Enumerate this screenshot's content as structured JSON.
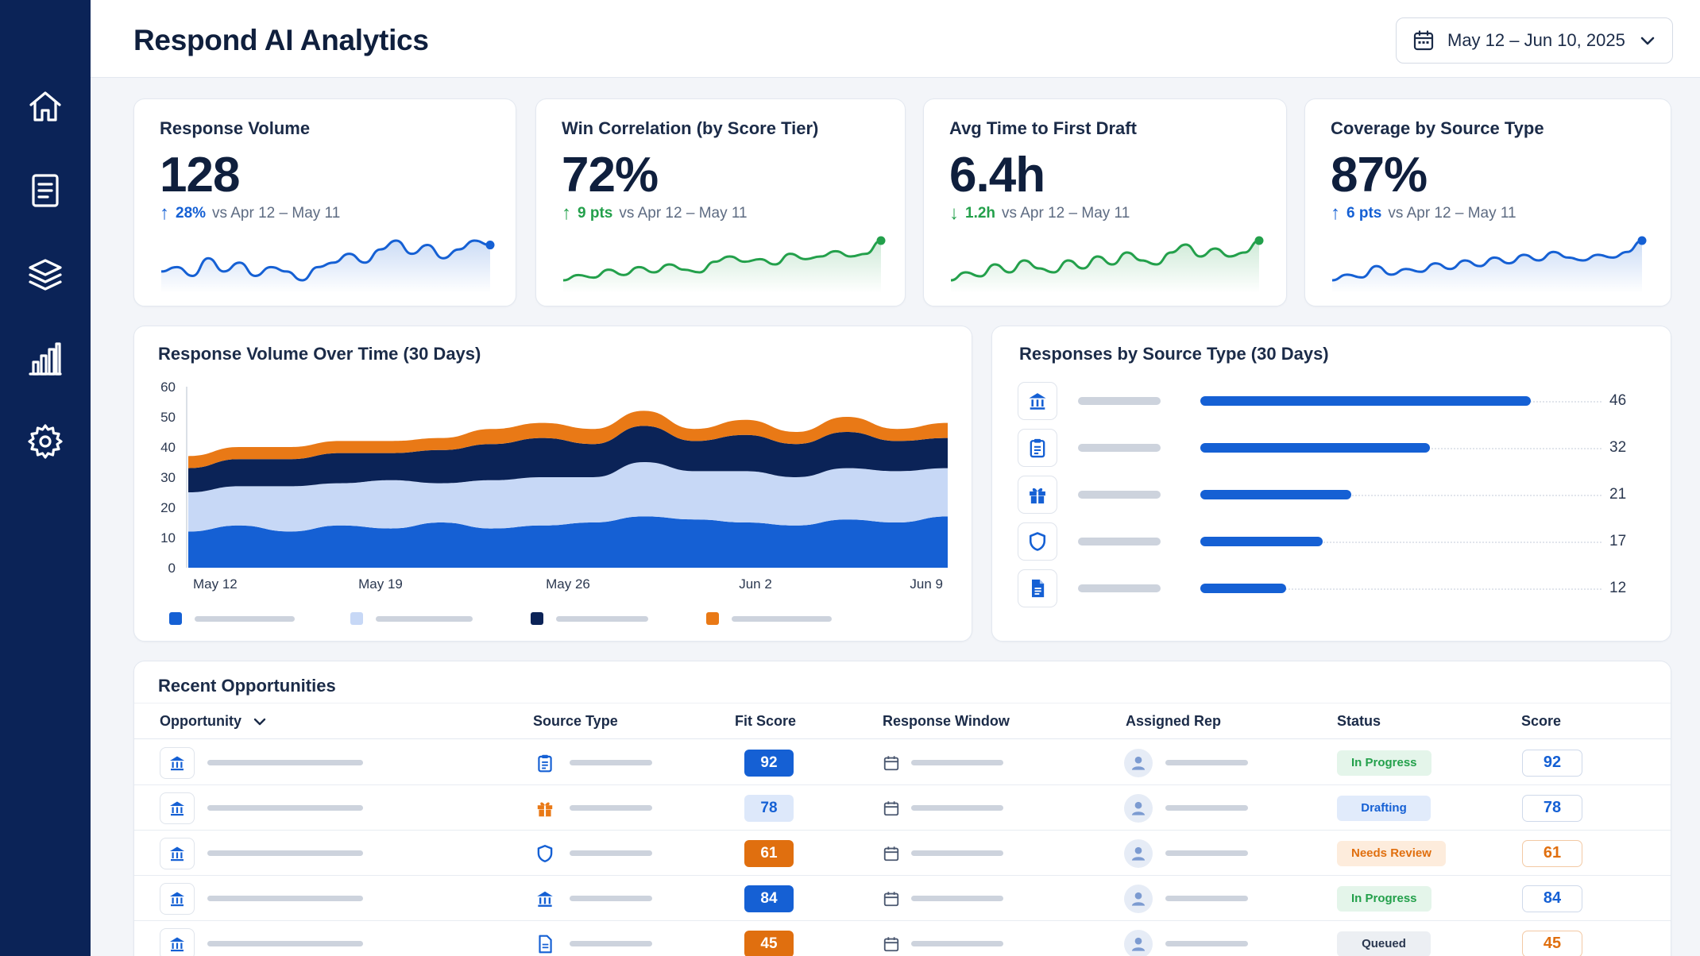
{
  "app": {
    "title": "Respond AI Analytics"
  },
  "sidebar": {
    "items": [
      {
        "name": "home",
        "icon": "home-icon"
      },
      {
        "name": "documents",
        "icon": "document-icon"
      },
      {
        "name": "layers",
        "icon": "layers-icon"
      },
      {
        "name": "analytics",
        "icon": "bar-chart-icon"
      },
      {
        "name": "settings",
        "icon": "gear-icon"
      }
    ]
  },
  "header": {
    "date_range": "May 12 – Jun 10, 2025"
  },
  "kpis": [
    {
      "title": "Response Volume",
      "value": "128",
      "delta": "28%",
      "direction": "up",
      "compare": "vs Apr 12 – May 11",
      "color": "#1560d4",
      "spark": [
        5,
        6,
        4,
        8,
        5,
        7,
        4,
        6,
        5,
        3,
        6,
        7,
        9,
        7,
        10,
        12,
        9,
        11,
        8,
        10,
        12,
        11
      ]
    },
    {
      "title": "Win Correlation (by Score Tier)",
      "value": "72%",
      "delta": "9 pts",
      "direction": "up",
      "compare": "vs Apr 12 – May 11",
      "color": "#23a04b",
      "spark": [
        3,
        5,
        4,
        7,
        5,
        8,
        6,
        9,
        7,
        6,
        10,
        12,
        10,
        11,
        9,
        13,
        11,
        12,
        14,
        12,
        13,
        18
      ]
    },
    {
      "title": "Avg Time to First Draft",
      "value": "6.4h",
      "delta": "1.2h",
      "direction": "down",
      "compare": "vs Apr 12 – May 11",
      "color": "#23a04b",
      "spark": [
        4,
        6,
        5,
        8,
        6,
        9,
        7,
        6,
        9,
        7,
        10,
        8,
        11,
        9,
        8,
        11,
        13,
        10,
        12,
        10,
        11,
        14
      ]
    },
    {
      "title": "Coverage by Source Type",
      "value": "87%",
      "delta": "6 pts",
      "direction": "up",
      "compare": "vs Apr 12 – May 11",
      "color": "#1560d4",
      "spark": [
        4,
        6,
        5,
        9,
        6,
        8,
        7,
        10,
        8,
        11,
        9,
        12,
        10,
        13,
        11,
        14,
        12,
        11,
        13,
        12,
        14,
        18
      ]
    }
  ],
  "area_panel": {
    "title": "Response Volume Over Time (30 Days)"
  },
  "source_panel": {
    "title": "Responses by Source Type (30 Days)"
  },
  "chart_data": [
    {
      "type": "area",
      "title": "Response Volume Over Time (30 Days)",
      "x": [
        "May 12",
        "May 14",
        "May 16",
        "May 18",
        "May 20",
        "May 22",
        "May 24",
        "May 26",
        "May 28",
        "May 30",
        "Jun 1",
        "Jun 3",
        "Jun 5",
        "Jun 7",
        "Jun 9",
        "Jun 10"
      ],
      "x_ticks": [
        "May 12",
        "May 19",
        "May 26",
        "Jun 2",
        "Jun 9"
      ],
      "y_ticks": [
        0,
        10,
        20,
        30,
        40,
        50,
        60
      ],
      "ylim": [
        0,
        60
      ],
      "stacked": true,
      "series": [
        {
          "color": "#1560d4",
          "values": [
            12,
            14,
            12,
            14,
            13,
            15,
            13,
            14,
            15,
            17,
            16,
            15,
            14,
            16,
            15,
            17
          ]
        },
        {
          "color": "#c7d8f6",
          "values": [
            13,
            13,
            15,
            14,
            16,
            13,
            16,
            16,
            15,
            18,
            16,
            17,
            16,
            17,
            17,
            16
          ]
        },
        {
          "color": "#0b2357",
          "values": [
            8,
            9,
            9,
            10,
            9,
            11,
            12,
            13,
            11,
            12,
            10,
            12,
            11,
            12,
            10,
            10
          ]
        },
        {
          "color": "#e97916",
          "values": [
            4,
            4,
            4,
            4,
            4,
            4,
            5,
            5,
            5,
            5,
            4,
            5,
            4,
            5,
            4,
            5
          ]
        }
      ]
    },
    {
      "type": "bar",
      "title": "Responses by Source Type (30 Days)",
      "orientation": "horizontal",
      "categories": [
        "bank-icon",
        "clipboard-icon",
        "gift-icon",
        "shield-icon",
        "file-icon"
      ],
      "values": [
        46,
        32,
        21,
        17,
        12
      ],
      "color": "#1560d4"
    }
  ],
  "table": {
    "title": "Recent Opportunities",
    "headers": [
      "Opportunity",
      "Source Type",
      "Fit Score",
      "Response Window",
      "Assigned Rep",
      "Status",
      "Score"
    ],
    "rows": [
      {
        "source_icon": "clipboard-icon",
        "source_color": "#1560d4",
        "fit": "92",
        "fit_style": "solid-blue",
        "status": "In Progress",
        "status_style": "green",
        "score": "92",
        "score_style": "blue"
      },
      {
        "source_icon": "gift-icon",
        "source_color": "#e97916",
        "fit": "78",
        "fit_style": "light-blue",
        "status": "Drafting",
        "status_style": "blue",
        "score": "78",
        "score_style": "blue"
      },
      {
        "source_icon": "shield-icon",
        "source_color": "#1560d4",
        "fit": "61",
        "fit_style": "solid-orange",
        "status": "Needs Review",
        "status_style": "orange",
        "score": "61",
        "score_style": "orange"
      },
      {
        "source_icon": "bank-icon",
        "source_color": "#1560d4",
        "fit": "84",
        "fit_style": "solid-blue",
        "status": "In Progress",
        "status_style": "green",
        "score": "84",
        "score_style": "blue"
      },
      {
        "source_icon": "file-icon",
        "source_color": "#1560d4",
        "fit": "45",
        "fit_style": "solid-orange",
        "status": "Queued",
        "status_style": "gray",
        "score": "45",
        "score_style": "orange"
      }
    ]
  }
}
